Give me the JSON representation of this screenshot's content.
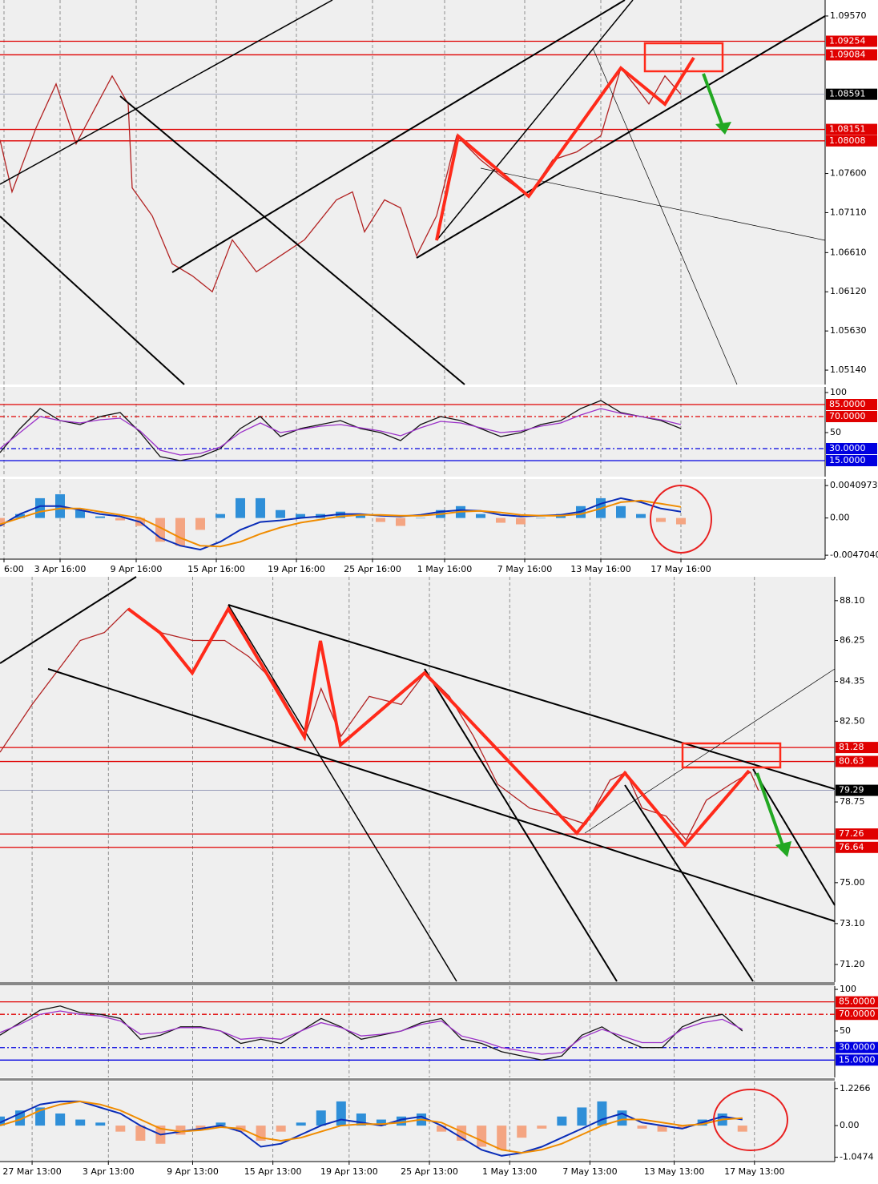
{
  "chart_data": [
    {
      "type": "line",
      "ylim": [
        1.0496,
        1.0977
      ],
      "yticks": [
        {
          "value": 1.0957,
          "label": "1.09570"
        },
        {
          "value": 1.076,
          "label": "1.07600"
        },
        {
          "value": 1.0711,
          "label": "1.07110"
        },
        {
          "value": 1.0661,
          "label": "1.06610"
        },
        {
          "value": 1.0612,
          "label": "1.06120"
        },
        {
          "value": 1.0563,
          "label": "1.05630"
        },
        {
          "value": 1.0514,
          "label": "1.05140"
        }
      ],
      "levels": [
        {
          "value": 1.09254,
          "color": "#e00000"
        },
        {
          "value": 1.09084,
          "color": "#e00000"
        },
        {
          "value": 1.08151,
          "color": "#e00000"
        },
        {
          "value": 1.08008,
          "color": "#e00000"
        }
      ],
      "current": 1.08591,
      "x": [
        0,
        3,
        9,
        14,
        19,
        28,
        32,
        33,
        38,
        43,
        48,
        53,
        58,
        64,
        70,
        76,
        84,
        88,
        91,
        96,
        100,
        104,
        109,
        114,
        120,
        125,
        132,
        138,
        144,
        150,
        155,
        159,
        162,
        166,
        170
      ],
      "series": [
        {
          "color": "#b22222",
          "values": [
            1.0802,
            1.0737,
            1.0817,
            1.0872,
            1.0797,
            1.0882,
            1.0847,
            1.0742,
            1.0707,
            1.0647,
            1.0632,
            1.0612,
            1.0677,
            1.0637,
            1.0657,
            1.0677,
            1.0727,
            1.0737,
            1.0687,
            1.0727,
            1.0717,
            1.0657,
            1.0707,
            1.0807,
            1.0777,
            1.0757,
            1.0732,
            1.0777,
            1.0787,
            1.0807,
            1.0892,
            1.0867,
            1.0847,
            1.0882,
            1.0859
          ]
        }
      ]
    },
    {
      "type": "line",
      "ylim": [
        -5,
        107
      ],
      "yticks": [
        100,
        50
      ],
      "levels": [
        {
          "value": 85,
          "label": "85.0000",
          "color": "#e00000",
          "style": "solid"
        },
        {
          "value": 70,
          "label": "70.0000",
          "color": "#e00000",
          "style": "dashdot"
        },
        {
          "value": 30,
          "label": "30.0000",
          "color": "#0000e0",
          "style": "dashdot"
        },
        {
          "value": 15,
          "label": "15.0000",
          "color": "#0000e0",
          "style": "solid"
        }
      ],
      "x": [
        0,
        5,
        10,
        15,
        20,
        25,
        30,
        35,
        40,
        45,
        50,
        55,
        60,
        65,
        70,
        75,
        80,
        85,
        90,
        95,
        100,
        105,
        110,
        115,
        120,
        125,
        130,
        135,
        140,
        145,
        150,
        155,
        160,
        165,
        170
      ],
      "series": [
        {
          "color": "#111111",
          "values": [
            25,
            55,
            80,
            65,
            60,
            70,
            75,
            50,
            20,
            15,
            20,
            30,
            55,
            70,
            45,
            55,
            60,
            65,
            55,
            50,
            40,
            60,
            70,
            65,
            55,
            45,
            50,
            60,
            65,
            80,
            90,
            75,
            70,
            65,
            55
          ]
        },
        {
          "color": "#9b30c8",
          "values": [
            30,
            50,
            70,
            65,
            62,
            66,
            68,
            52,
            28,
            22,
            24,
            32,
            50,
            62,
            50,
            54,
            58,
            60,
            56,
            52,
            46,
            56,
            64,
            62,
            56,
            50,
            52,
            58,
            62,
            72,
            80,
            74,
            70,
            66,
            60
          ]
        }
      ]
    },
    {
      "type": "macd",
      "ylim": [
        -0.0052,
        0.00492
      ],
      "xlim": [
        0,
        206
      ],
      "yticks": [
        0.0040973,
        {
          "value": 0,
          "label": "0.00"
        },
        {
          "value": -0.004704,
          "label": "-0.0047040"
        }
      ],
      "xticks": [
        {
          "value": 1,
          "label": "6:00"
        },
        {
          "value": 15,
          "label": "3 Apr 16:00"
        },
        {
          "value": 34,
          "label": "9 Apr 16:00"
        },
        {
          "value": 54,
          "label": "15 Apr 16:00"
        },
        {
          "value": 74,
          "label": "19 Apr 16:00"
        },
        {
          "value": 93,
          "label": "25 Apr 16:00"
        },
        {
          "value": 111,
          "label": "1 May 16:00"
        },
        {
          "value": 131,
          "label": "7 May 16:00"
        },
        {
          "value": 150,
          "label": "13 May 16:00"
        },
        {
          "value": 170,
          "label": "17 May 16:00"
        }
      ],
      "x": [
        0,
        5,
        10,
        15,
        20,
        25,
        30,
        35,
        40,
        45,
        50,
        55,
        60,
        65,
        70,
        75,
        80,
        85,
        90,
        95,
        100,
        105,
        110,
        115,
        120,
        125,
        130,
        135,
        140,
        145,
        150,
        155,
        160,
        165,
        170
      ],
      "histogram": {
        "pos_color": "#2f8fd8",
        "neg_color": "#f4a582",
        "values": [
          -0.001,
          0.0005,
          0.0025,
          0.003,
          0.001,
          0.0002,
          -0.0003,
          -0.001,
          -0.003,
          -0.0035,
          -0.0015,
          0.0005,
          0.0025,
          0.0025,
          0.001,
          0.0005,
          0.0005,
          0.0008,
          0.0005,
          -0.0005,
          -0.001,
          0,
          0.001,
          0.0015,
          0.0005,
          -0.0006,
          -0.0008,
          0,
          0.0005,
          0.0015,
          0.0025,
          0.0015,
          0.0005,
          -0.0005,
          -0.0008
        ]
      },
      "series": [
        {
          "color": "#0a2db8",
          "values": [
            -0.001,
            0.0005,
            0.0015,
            0.0015,
            0.001,
            0.0005,
            0.0002,
            -0.0005,
            -0.0025,
            -0.0035,
            -0.004,
            -0.003,
            -0.0015,
            -0.0005,
            -0.0003,
            0,
            0.0002,
            0.0005,
            0.0005,
            0.0003,
            0.0002,
            0.0004,
            0.0008,
            0.001,
            0.0009,
            0.0004,
            0.0002,
            0.0003,
            0.0004,
            0.0008,
            0.0018,
            0.0025,
            0.002,
            0.0012,
            0.0008
          ]
        },
        {
          "color": "#f08c00",
          "values": [
            -0.0008,
            0,
            0.0008,
            0.0012,
            0.0012,
            0.0008,
            0.0004,
            0,
            -0.0012,
            -0.0025,
            -0.0035,
            -0.0036,
            -0.003,
            -0.002,
            -0.0012,
            -0.0006,
            -0.0002,
            0.0002,
            0.0004,
            0.0004,
            0.0003,
            0.0003,
            0.0005,
            0.0008,
            0.0009,
            0.0007,
            0.0004,
            0.0003,
            0.0003,
            0.0005,
            0.0012,
            0.002,
            0.0022,
            0.0018,
            0.0014
          ]
        }
      ]
    },
    {
      "type": "line",
      "ylim": [
        70.38,
        89.21
      ],
      "yticks": [
        {
          "value": 88.1,
          "label": "88.10"
        },
        86.25,
        84.35,
        {
          "value": 82.5,
          "label": "82.50"
        },
        78.75,
        {
          "value": 75,
          "label": "75.00"
        },
        {
          "value": 73.1,
          "label": "73.10"
        },
        {
          "value": 71.2,
          "label": "71.20"
        }
      ],
      "levels": [
        {
          "value": 81.28,
          "color": "#e00000"
        },
        {
          "value": 80.63,
          "color": "#e00000"
        },
        {
          "value": 77.26,
          "color": "#e00000"
        },
        {
          "value": 76.64,
          "color": "#e00000"
        }
      ],
      "current": 79.29,
      "x": [
        0,
        8,
        14,
        20,
        26,
        32,
        40,
        48,
        56,
        62,
        68,
        76,
        80,
        85,
        92,
        100,
        106,
        112,
        118,
        124,
        132,
        140,
        146,
        152,
        156,
        160,
        166,
        171,
        176,
        182,
        187,
        189
      ],
      "series": [
        {
          "color": "#b22222",
          "values": [
            81.06,
            83.28,
            84.76,
            86.25,
            86.62,
            87.73,
            86.62,
            86.25,
            86.25,
            85.5,
            84.39,
            81.8,
            84.02,
            81.8,
            83.65,
            83.28,
            84.76,
            83.65,
            81.8,
            79.57,
            78.46,
            78.09,
            77.72,
            79.76,
            80.13,
            78.46,
            78.09,
            76.98,
            78.83,
            79.57,
            80.13,
            79.28
          ]
        }
      ]
    },
    {
      "type": "line",
      "ylim": [
        -5.9,
        103.9
      ],
      "yticks": [
        100,
        50
      ],
      "levels": [
        {
          "value": 85,
          "label": "85.0000",
          "color": "#e00000",
          "style": "solid"
        },
        {
          "value": 70,
          "label": "70.0000",
          "color": "#e00000",
          "style": "dashdot"
        },
        {
          "value": 30,
          "label": "30.0000",
          "color": "#0000e0",
          "style": "dashdot"
        },
        {
          "value": 15,
          "label": "15.0000",
          "color": "#0000e0",
          "style": "solid"
        }
      ],
      "x": [
        0,
        5,
        10,
        15,
        20,
        25,
        30,
        35,
        40,
        45,
        50,
        55,
        60,
        65,
        70,
        75,
        80,
        85,
        90,
        95,
        100,
        105,
        110,
        115,
        120,
        125,
        130,
        135,
        140,
        145,
        150,
        155,
        160,
        165,
        170,
        175,
        180,
        185
      ],
      "series": [
        {
          "color": "#111111",
          "values": [
            45,
            60,
            75,
            80,
            72,
            70,
            65,
            40,
            45,
            55,
            55,
            50,
            35,
            40,
            35,
            50,
            65,
            55,
            40,
            45,
            50,
            60,
            65,
            40,
            35,
            25,
            20,
            15,
            20,
            45,
            55,
            40,
            30,
            30,
            55,
            65,
            70,
            50
          ]
        },
        {
          "color": "#9b30c8",
          "values": [
            48,
            58,
            70,
            74,
            70,
            68,
            62,
            46,
            48,
            54,
            54,
            50,
            40,
            42,
            40,
            50,
            60,
            54,
            44,
            46,
            50,
            58,
            62,
            44,
            38,
            30,
            26,
            22,
            24,
            42,
            52,
            44,
            36,
            36,
            52,
            60,
            64,
            52
          ]
        }
      ]
    },
    {
      "type": "macd",
      "ylim": [
        -1.19,
        1.46
      ],
      "xlim": [
        0,
        208
      ],
      "yticks": [
        1.2266,
        {
          "value": 0,
          "label": "0.00"
        },
        -1.0474
      ],
      "xticks": [
        {
          "value": 8,
          "label": "27 Mar 13:00"
        },
        {
          "value": 27,
          "label": "3 Apr 13:00"
        },
        {
          "value": 48,
          "label": "9 Apr 13:00"
        },
        {
          "value": 68,
          "label": "15 Apr 13:00"
        },
        {
          "value": 87,
          "label": "19 Apr 13:00"
        },
        {
          "value": 107,
          "label": "25 Apr 13:00"
        },
        {
          "value": 127,
          "label": "1 May 13:00"
        },
        {
          "value": 147,
          "label": "7 May 13:00"
        },
        {
          "value": 168,
          "label": "13 May 13:00"
        },
        {
          "value": 188,
          "label": "17 May 13:00"
        }
      ],
      "x": [
        0,
        5,
        10,
        15,
        20,
        25,
        30,
        35,
        40,
        45,
        50,
        55,
        60,
        65,
        70,
        75,
        80,
        85,
        90,
        95,
        100,
        105,
        110,
        115,
        120,
        125,
        130,
        135,
        140,
        145,
        150,
        155,
        160,
        165,
        170,
        175,
        180,
        185
      ],
      "histogram": {
        "pos_color": "#2f8fd8",
        "neg_color": "#f4a582",
        "values": [
          0.3,
          0.5,
          0.6,
          0.4,
          0.2,
          0.1,
          -0.2,
          -0.5,
          -0.6,
          -0.3,
          -0.1,
          0.1,
          -0.2,
          -0.5,
          -0.2,
          0.1,
          0.5,
          0.8,
          0.4,
          0.2,
          0.3,
          0.4,
          -0.2,
          -0.5,
          -0.7,
          -0.8,
          -0.4,
          -0.1,
          0.3,
          0.6,
          0.8,
          0.5,
          -0.1,
          -0.2,
          -0.1,
          0.2,
          0.4,
          -0.2
        ]
      },
      "series": [
        {
          "color": "#0a2db8",
          "values": [
            0.1,
            0.4,
            0.7,
            0.8,
            0.8,
            0.6,
            0.4,
            0,
            -0.3,
            -0.2,
            -0.1,
            0,
            -0.2,
            -0.7,
            -0.6,
            -0.3,
            0,
            0.2,
            0.1,
            0,
            0.2,
            0.3,
            0,
            -0.4,
            -0.8,
            -1.0,
            -0.9,
            -0.7,
            -0.4,
            -0.1,
            0.2,
            0.4,
            0.1,
            0,
            -0.1,
            0.1,
            0.3,
            0.2
          ]
        },
        {
          "color": "#f08c00",
          "values": [
            0,
            0.2,
            0.5,
            0.7,
            0.8,
            0.7,
            0.5,
            0.2,
            -0.1,
            -0.2,
            -0.15,
            -0.05,
            -0.1,
            -0.4,
            -0.5,
            -0.4,
            -0.2,
            0,
            0.05,
            0.05,
            0.1,
            0.2,
            0.1,
            -0.2,
            -0.5,
            -0.8,
            -0.9,
            -0.8,
            -0.6,
            -0.3,
            0,
            0.2,
            0.2,
            0.1,
            0,
            0.05,
            0.2,
            0.25
          ]
        }
      ]
    }
  ]
}
